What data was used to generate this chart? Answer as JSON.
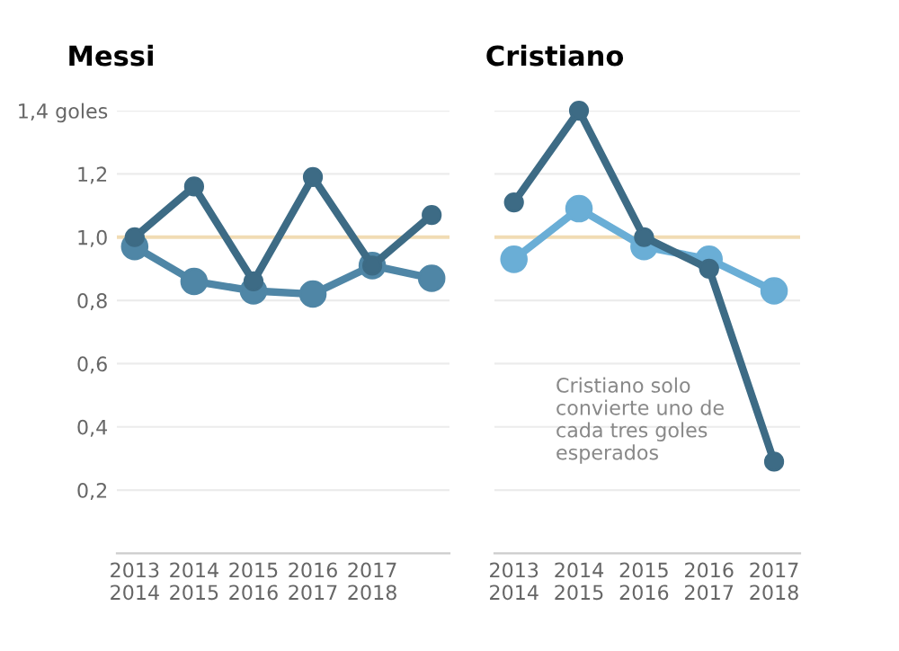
{
  "chart_data": [
    {
      "type": "line",
      "title": "Messi",
      "categories": [
        "2013\n2014",
        "2014\n2015",
        "2015\n2016",
        "2016\n2017",
        "2017\n2018",
        null
      ],
      "series": [
        {
          "color": "#3d6b85",
          "values": [
            1.0,
            1.16,
            0.86,
            1.19,
            0.91,
            1.07
          ]
        },
        {
          "color": "#4f86a6",
          "values": [
            0.97,
            0.86,
            0.83,
            0.82,
            0.91,
            0.87
          ]
        }
      ],
      "ylim": [
        0,
        1.4
      ],
      "yticks": [
        {
          "value": 0.2,
          "label": "0,2"
        },
        {
          "value": 0.4,
          "label": "0,4"
        },
        {
          "value": 0.6,
          "label": "0,6"
        },
        {
          "value": 0.8,
          "label": "0,8"
        },
        {
          "value": 1.0,
          "label": "1,0"
        },
        {
          "value": 1.2,
          "label": "1,2"
        },
        {
          "value": 1.4,
          "label": "1,4 goles"
        }
      ],
      "ref_lines": [
        {
          "axis": "y",
          "value": 1.0,
          "color": "#f1dcb4"
        }
      ],
      "grid": "y",
      "marker": "circle",
      "legend": false
    },
    {
      "type": "line",
      "title": "Cristiano",
      "categories": [
        "2013\n2014",
        "2014\n2015",
        "2015\n2016",
        "2016\n2017",
        "2017\n2018"
      ],
      "series": [
        {
          "color": "#3d6b85",
          "values": [
            1.11,
            1.4,
            1.0,
            0.9,
            0.29
          ]
        },
        {
          "color": "#6aaed6",
          "values": [
            0.93,
            1.09,
            0.97,
            0.93,
            0.83
          ]
        }
      ],
      "ylim": [
        0,
        1.4
      ],
      "yticks": [
        0.2,
        0.4,
        0.6,
        0.8,
        1.0,
        1.2,
        1.4
      ],
      "tick_labels": "x",
      "ref_lines": [
        {
          "axis": "y",
          "value": 1.0,
          "color": "#f1dcb4"
        }
      ],
      "grid": "y",
      "marker": "circle",
      "legend": false,
      "annotations": [
        "Cristiano solo\nconvierte uno de\ncada tres goles\nesperados"
      ]
    }
  ]
}
